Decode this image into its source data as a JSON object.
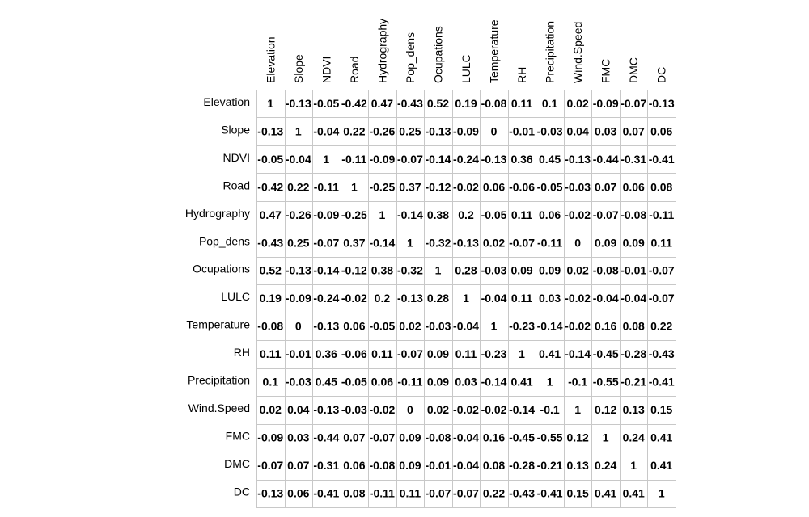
{
  "chart_data": {
    "type": "heatmap",
    "variables": [
      "Elevation",
      "Slope",
      "NDVI",
      "Road",
      "Hydrography",
      "Pop_dens",
      "Ocupations",
      "LULC",
      "Temperature",
      "RH",
      "Precipitation",
      "Wind.Speed",
      "FMC",
      "DMC",
      "DC"
    ],
    "matrix_labels": [
      [
        "1",
        "-0.13",
        "-0.05",
        "-0.42",
        "0.47",
        "-0.43",
        "0.52",
        "0.19",
        "-0.08",
        "0.11",
        "0.1",
        "0.02",
        "-0.09",
        "-0.07",
        "-0.13"
      ],
      [
        "-0.13",
        "1",
        "-0.04",
        "0.22",
        "-0.26",
        "0.25",
        "-0.13",
        "-0.09",
        "0",
        "-0.01",
        "-0.03",
        "0.04",
        "0.03",
        "0.07",
        "0.06"
      ],
      [
        "-0.05",
        "-0.04",
        "1",
        "-0.11",
        "-0.09",
        "-0.07",
        "-0.14",
        "-0.24",
        "-0.13",
        "0.36",
        "0.45",
        "-0.13",
        "-0.44",
        "-0.31",
        "-0.41"
      ],
      [
        "-0.42",
        "0.22",
        "-0.11",
        "1",
        "-0.25",
        "0.37",
        "-0.12",
        "-0.02",
        "0.06",
        "-0.06",
        "-0.05",
        "-0.03",
        "0.07",
        "0.06",
        "0.08"
      ],
      [
        "0.47",
        "-0.26",
        "-0.09",
        "-0.25",
        "1",
        "-0.14",
        "0.38",
        "0.2",
        "-0.05",
        "0.11",
        "0.06",
        "-0.02",
        "-0.07",
        "-0.08",
        "-0.11"
      ],
      [
        "-0.43",
        "0.25",
        "-0.07",
        "0.37",
        "-0.14",
        "1",
        "-0.32",
        "-0.13",
        "0.02",
        "-0.07",
        "-0.11",
        "0",
        "0.09",
        "0.09",
        "0.11"
      ],
      [
        "0.52",
        "-0.13",
        "-0.14",
        "-0.12",
        "0.38",
        "-0.32",
        "1",
        "0.28",
        "-0.03",
        "0.09",
        "0.09",
        "0.02",
        "-0.08",
        "-0.01",
        "-0.07"
      ],
      [
        "0.19",
        "-0.09",
        "-0.24",
        "-0.02",
        "0.2",
        "-0.13",
        "0.28",
        "1",
        "-0.04",
        "0.11",
        "0.03",
        "-0.02",
        "-0.04",
        "-0.04",
        "-0.07"
      ],
      [
        "-0.08",
        "0",
        "-0.13",
        "0.06",
        "-0.05",
        "0.02",
        "-0.03",
        "-0.04",
        "1",
        "-0.23",
        "-0.14",
        "-0.02",
        "0.16",
        "0.08",
        "0.22"
      ],
      [
        "0.11",
        "-0.01",
        "0.36",
        "-0.06",
        "0.11",
        "-0.07",
        "0.09",
        "0.11",
        "-0.23",
        "1",
        "0.41",
        "-0.14",
        "-0.45",
        "-0.28",
        "-0.43"
      ],
      [
        "0.1",
        "-0.03",
        "0.45",
        "-0.05",
        "0.06",
        "-0.11",
        "0.09",
        "0.03",
        "-0.14",
        "0.41",
        "1",
        "-0.1",
        "-0.55",
        "-0.21",
        "-0.41"
      ],
      [
        "0.02",
        "0.04",
        "-0.13",
        "-0.03",
        "-0.02",
        "0",
        "0.02",
        "-0.02",
        "-0.02",
        "-0.14",
        "-0.1",
        "1",
        "0.12",
        "0.13",
        "0.15"
      ],
      [
        "-0.09",
        "0.03",
        "-0.44",
        "0.07",
        "-0.07",
        "0.09",
        "-0.08",
        "-0.04",
        "0.16",
        "-0.45",
        "-0.55",
        "0.12",
        "1",
        "0.24",
        "0.41"
      ],
      [
        "-0.07",
        "0.07",
        "-0.31",
        "0.06",
        "-0.08",
        "0.09",
        "-0.01",
        "-0.04",
        "0.08",
        "-0.28",
        "-0.21",
        "0.13",
        "0.24",
        "1",
        "0.41"
      ],
      [
        "-0.13",
        "0.06",
        "-0.41",
        "0.08",
        "-0.11",
        "0.11",
        "-0.07",
        "-0.07",
        "0.22",
        "-0.43",
        "-0.41",
        "0.15",
        "0.41",
        "0.41",
        "1"
      ]
    ],
    "grid": true,
    "colors": {
      "grid": "#c8c8c8",
      "text": "#000000",
      "background": "#ffffff"
    }
  }
}
